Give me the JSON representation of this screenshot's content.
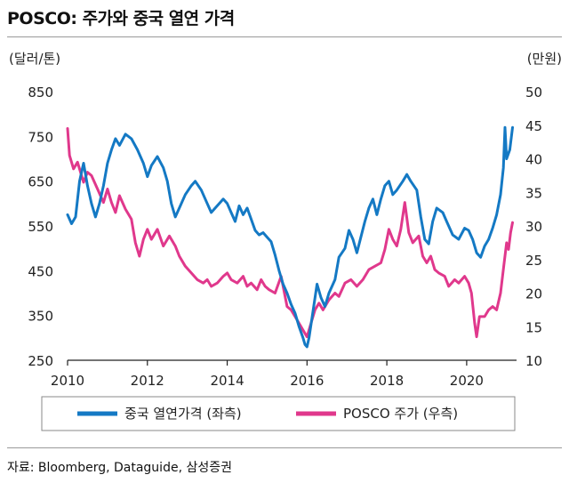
{
  "title": "POSCO: 주가와 중국 열연 가격",
  "source": "자료: Bloomberg, Dataguide, 삼성증권",
  "chart_data": {
    "type": "line",
    "left_unit": "(달러/톤)",
    "right_unit": "(만원)",
    "x_ticks": [
      "2010",
      "2012",
      "2014",
      "2016",
      "2018",
      "2020"
    ],
    "xlim": [
      2010,
      2021.25
    ],
    "y_left": {
      "lim": [
        250,
        850
      ],
      "ticks": [
        850,
        750,
        650,
        550,
        450,
        350,
        250
      ]
    },
    "y_right": {
      "lim": [
        10,
        50
      ],
      "ticks": [
        50,
        45,
        40,
        35,
        30,
        25,
        20,
        15,
        10
      ]
    },
    "legend": {
      "placement": "bottom"
    },
    "series": [
      {
        "name": "중국 열연가격 (좌측)",
        "axis": "left",
        "color": "#1479C4",
        "points": [
          [
            2010.0,
            575
          ],
          [
            2010.1,
            555
          ],
          [
            2010.2,
            570
          ],
          [
            2010.3,
            650
          ],
          [
            2010.4,
            690
          ],
          [
            2010.5,
            640
          ],
          [
            2010.6,
            600
          ],
          [
            2010.7,
            570
          ],
          [
            2010.8,
            600
          ],
          [
            2010.9,
            640
          ],
          [
            2011.0,
            690
          ],
          [
            2011.1,
            720
          ],
          [
            2011.2,
            745
          ],
          [
            2011.3,
            730
          ],
          [
            2011.45,
            755
          ],
          [
            2011.6,
            745
          ],
          [
            2011.75,
            720
          ],
          [
            2011.9,
            690
          ],
          [
            2012.0,
            660
          ],
          [
            2012.1,
            685
          ],
          [
            2012.25,
            705
          ],
          [
            2012.4,
            680
          ],
          [
            2012.5,
            650
          ],
          [
            2012.6,
            600
          ],
          [
            2012.7,
            570
          ],
          [
            2012.8,
            590
          ],
          [
            2012.95,
            620
          ],
          [
            2013.1,
            640
          ],
          [
            2013.2,
            650
          ],
          [
            2013.35,
            630
          ],
          [
            2013.5,
            600
          ],
          [
            2013.6,
            580
          ],
          [
            2013.75,
            595
          ],
          [
            2013.9,
            610
          ],
          [
            2014.0,
            600
          ],
          [
            2014.1,
            580
          ],
          [
            2014.2,
            560
          ],
          [
            2014.3,
            595
          ],
          [
            2014.4,
            575
          ],
          [
            2014.5,
            590
          ],
          [
            2014.6,
            565
          ],
          [
            2014.7,
            540
          ],
          [
            2014.8,
            530
          ],
          [
            2014.9,
            535
          ],
          [
            2015.0,
            525
          ],
          [
            2015.1,
            515
          ],
          [
            2015.2,
            485
          ],
          [
            2015.3,
            450
          ],
          [
            2015.4,
            420
          ],
          [
            2015.5,
            400
          ],
          [
            2015.6,
            375
          ],
          [
            2015.7,
            355
          ],
          [
            2015.8,
            325
          ],
          [
            2015.9,
            300
          ],
          [
            2015.95,
            285
          ],
          [
            2016.0,
            280
          ],
          [
            2016.05,
            300
          ],
          [
            2016.15,
            360
          ],
          [
            2016.25,
            420
          ],
          [
            2016.35,
            390
          ],
          [
            2016.45,
            370
          ],
          [
            2016.55,
            400
          ],
          [
            2016.7,
            430
          ],
          [
            2016.8,
            480
          ],
          [
            2016.95,
            500
          ],
          [
            2017.05,
            540
          ],
          [
            2017.15,
            520
          ],
          [
            2017.25,
            490
          ],
          [
            2017.35,
            525
          ],
          [
            2017.45,
            560
          ],
          [
            2017.55,
            590
          ],
          [
            2017.65,
            610
          ],
          [
            2017.75,
            575
          ],
          [
            2017.85,
            610
          ],
          [
            2017.95,
            640
          ],
          [
            2018.05,
            650
          ],
          [
            2018.15,
            620
          ],
          [
            2018.25,
            630
          ],
          [
            2018.4,
            650
          ],
          [
            2018.5,
            665
          ],
          [
            2018.6,
            650
          ],
          [
            2018.75,
            630
          ],
          [
            2018.85,
            570
          ],
          [
            2018.95,
            520
          ],
          [
            2019.05,
            510
          ],
          [
            2019.15,
            560
          ],
          [
            2019.25,
            590
          ],
          [
            2019.4,
            580
          ],
          [
            2019.5,
            560
          ],
          [
            2019.65,
            530
          ],
          [
            2019.8,
            520
          ],
          [
            2019.95,
            545
          ],
          [
            2020.05,
            540
          ],
          [
            2020.15,
            520
          ],
          [
            2020.25,
            490
          ],
          [
            2020.35,
            480
          ],
          [
            2020.45,
            505
          ],
          [
            2020.55,
            520
          ],
          [
            2020.65,
            545
          ],
          [
            2020.75,
            575
          ],
          [
            2020.85,
            620
          ],
          [
            2020.92,
            680
          ],
          [
            2020.96,
            770
          ],
          [
            2021.0,
            700
          ],
          [
            2021.08,
            720
          ],
          [
            2021.15,
            770
          ]
        ]
      },
      {
        "name": "POSCO 주가 (우측)",
        "axis": "right",
        "color": "#E0388C",
        "points": [
          [
            2010.0,
            44.5
          ],
          [
            2010.05,
            40.5
          ],
          [
            2010.15,
            38.5
          ],
          [
            2010.25,
            39.5
          ],
          [
            2010.4,
            36.5
          ],
          [
            2010.5,
            38.0
          ],
          [
            2010.6,
            37.5
          ],
          [
            2010.75,
            35.5
          ],
          [
            2010.9,
            33.5
          ],
          [
            2011.0,
            35.5
          ],
          [
            2011.1,
            33.5
          ],
          [
            2011.2,
            32.0
          ],
          [
            2011.3,
            34.5
          ],
          [
            2011.45,
            32.5
          ],
          [
            2011.6,
            31.0
          ],
          [
            2011.7,
            27.5
          ],
          [
            2011.8,
            25.5
          ],
          [
            2011.9,
            28.0
          ],
          [
            2012.0,
            29.5
          ],
          [
            2012.1,
            28.0
          ],
          [
            2012.25,
            29.5
          ],
          [
            2012.4,
            27.0
          ],
          [
            2012.55,
            28.5
          ],
          [
            2012.7,
            27.0
          ],
          [
            2012.8,
            25.5
          ],
          [
            2012.95,
            24.0
          ],
          [
            2013.1,
            23.0
          ],
          [
            2013.25,
            22.0
          ],
          [
            2013.4,
            21.5
          ],
          [
            2013.5,
            22.0
          ],
          [
            2013.6,
            21.0
          ],
          [
            2013.75,
            21.5
          ],
          [
            2013.9,
            22.5
          ],
          [
            2014.0,
            23.0
          ],
          [
            2014.1,
            22.0
          ],
          [
            2014.25,
            21.5
          ],
          [
            2014.4,
            22.5
          ],
          [
            2014.5,
            21.0
          ],
          [
            2014.6,
            21.5
          ],
          [
            2014.75,
            20.5
          ],
          [
            2014.85,
            22.0
          ],
          [
            2014.95,
            21.0
          ],
          [
            2015.05,
            20.5
          ],
          [
            2015.2,
            20.0
          ],
          [
            2015.35,
            22.5
          ],
          [
            2015.5,
            18.0
          ],
          [
            2015.6,
            17.5
          ],
          [
            2015.7,
            16.5
          ],
          [
            2015.8,
            15.5
          ],
          [
            2015.9,
            14.5
          ],
          [
            2016.0,
            13.5
          ],
          [
            2016.1,
            15.5
          ],
          [
            2016.2,
            17.5
          ],
          [
            2016.3,
            18.5
          ],
          [
            2016.4,
            17.5
          ],
          [
            2016.55,
            19.0
          ],
          [
            2016.7,
            20.0
          ],
          [
            2016.8,
            19.5
          ],
          [
            2016.95,
            21.5
          ],
          [
            2017.1,
            22.0
          ],
          [
            2017.25,
            21.0
          ],
          [
            2017.4,
            22.0
          ],
          [
            2017.55,
            23.5
          ],
          [
            2017.7,
            24.0
          ],
          [
            2017.85,
            24.5
          ],
          [
            2017.95,
            26.5
          ],
          [
            2018.05,
            29.5
          ],
          [
            2018.15,
            28.0
          ],
          [
            2018.25,
            27.0
          ],
          [
            2018.35,
            29.5
          ],
          [
            2018.45,
            33.5
          ],
          [
            2018.55,
            29.0
          ],
          [
            2018.65,
            27.5
          ],
          [
            2018.8,
            28.5
          ],
          [
            2018.9,
            25.5
          ],
          [
            2019.0,
            24.5
          ],
          [
            2019.1,
            25.5
          ],
          [
            2019.2,
            23.5
          ],
          [
            2019.3,
            23.0
          ],
          [
            2019.45,
            22.5
          ],
          [
            2019.55,
            21.0
          ],
          [
            2019.7,
            22.0
          ],
          [
            2019.8,
            21.5
          ],
          [
            2019.95,
            22.5
          ],
          [
            2020.05,
            21.5
          ],
          [
            2020.12,
            20.0
          ],
          [
            2020.2,
            15.5
          ],
          [
            2020.25,
            13.5
          ],
          [
            2020.32,
            16.5
          ],
          [
            2020.45,
            16.5
          ],
          [
            2020.55,
            17.5
          ],
          [
            2020.65,
            18.0
          ],
          [
            2020.75,
            17.5
          ],
          [
            2020.85,
            20.0
          ],
          [
            2020.93,
            24.0
          ],
          [
            2021.0,
            27.5
          ],
          [
            2021.05,
            26.5
          ],
          [
            2021.1,
            29.0
          ],
          [
            2021.15,
            30.5
          ]
        ]
      }
    ]
  }
}
